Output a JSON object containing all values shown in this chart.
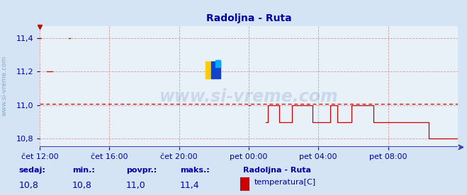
{
  "title": "Radoljna - Ruta",
  "bg_color": "#d4e4f4",
  "plot_bg_color": "#e8f0f8",
  "line_color": "#cc0000",
  "dashed_line_color": "#cc0000",
  "dashed_line_value": 11.01,
  "axis_color": "#4040aa",
  "text_color": "#0000aa",
  "grid_color": "#cc8888",
  "yticks": [
    10.8,
    11.0,
    11.2,
    11.4
  ],
  "ylim": [
    10.75,
    11.47
  ],
  "xlim": [
    0,
    288
  ],
  "xtick_labels": [
    "čet 12:00",
    "čet 16:00",
    "čet 20:00",
    "pet 00:00",
    "pet 04:00",
    "pet 08:00"
  ],
  "xtick_positions": [
    0,
    48,
    96,
    144,
    192,
    240
  ],
  "watermark": "www.si-vreme.com",
  "footer_labels": [
    "sedaj:",
    "min.:",
    "povpr.:",
    "maks.:"
  ],
  "footer_values": [
    "10,8",
    "10,8",
    "11,0",
    "11,4"
  ],
  "legend_title": "Radoljna - Ruta",
  "legend_item": "temperatura[C]",
  "legend_color": "#cc0000",
  "segments": [
    {
      "x": [
        0,
        1
      ],
      "y": [
        11.4,
        11.4
      ]
    },
    {
      "x": [
        5,
        9
      ],
      "y": [
        11.2,
        11.2
      ]
    },
    {
      "x": [
        20,
        21
      ],
      "y": [
        11.4,
        11.4
      ]
    },
    {
      "x": [
        144,
        145
      ],
      "y": [
        11.0,
        11.0
      ]
    },
    {
      "x": [
        156,
        157,
        157,
        158,
        158,
        165,
        165,
        168,
        168,
        174,
        174,
        185,
        185,
        188,
        188,
        196,
        196,
        200,
        200,
        202,
        202,
        203,
        203,
        204,
        204,
        205,
        205,
        207,
        207,
        215,
        215,
        222,
        222,
        230,
        230,
        240,
        240,
        252,
        252,
        260,
        260,
        268,
        268,
        270,
        270,
        271,
        271,
        288
      ],
      "y": [
        10.9,
        10.9,
        11.0,
        11.0,
        11.0,
        11.0,
        10.9,
        10.9,
        10.9,
        10.9,
        11.0,
        11.0,
        11.0,
        11.0,
        10.9,
        10.9,
        10.9,
        10.9,
        11.0,
        11.0,
        11.0,
        11.0,
        11.0,
        11.0,
        11.0,
        11.0,
        10.9,
        10.9,
        10.9,
        10.9,
        11.0,
        11.0,
        11.0,
        11.0,
        10.9,
        10.9,
        10.9,
        10.9,
        10.9,
        10.9,
        10.9,
        10.9,
        10.8,
        10.8,
        10.8,
        10.8,
        10.8,
        10.8
      ]
    }
  ],
  "ylabel_text": "www.si-vreme.com"
}
